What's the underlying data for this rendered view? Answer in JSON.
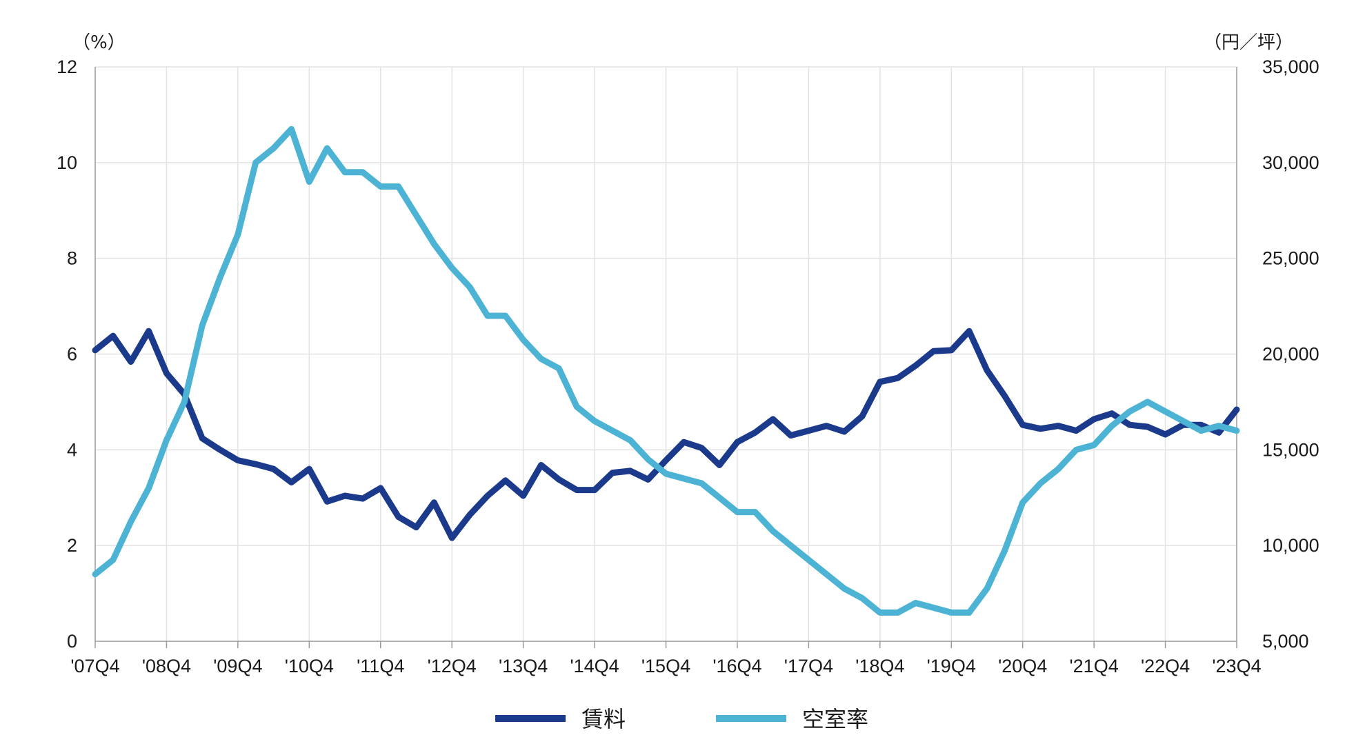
{
  "chart_data": {
    "type": "line",
    "title": "",
    "left_axis": {
      "unit_label": "（%）",
      "ylim": [
        0,
        12
      ],
      "ticks": [
        0,
        2,
        4,
        6,
        8,
        10,
        12
      ],
      "tick_labels": [
        "0",
        "2",
        "4",
        "6",
        "8",
        "10",
        "12"
      ]
    },
    "right_axis": {
      "unit_label": "（円／坪）",
      "ylim": [
        5000,
        35000
      ],
      "ticks": [
        5000,
        10000,
        15000,
        20000,
        25000,
        30000,
        35000
      ],
      "tick_labels": [
        "5,000",
        "10,000",
        "15,000",
        "20,000",
        "25,000",
        "30,000",
        "35,000"
      ]
    },
    "x_tick_labels": [
      "'07Q4",
      "'08Q4",
      "'09Q4",
      "'10Q4",
      "'11Q4",
      "'12Q4",
      "'13Q4",
      "'14Q4",
      "'15Q4",
      "'16Q4",
      "'17Q4",
      "'18Q4",
      "'19Q4",
      "'20Q4",
      "'21Q4",
      "'22Q4",
      "'23Q4"
    ],
    "quarters_count": 65,
    "grid": true,
    "legend_position": "bottom-center",
    "series": [
      {
        "name": "賃料",
        "axis": "right",
        "color": "#1b3a8c",
        "values": [
          20200,
          20950,
          19600,
          21200,
          19000,
          17900,
          15600,
          15000,
          14450,
          14250,
          14000,
          13300,
          14000,
          12300,
          12600,
          12450,
          13000,
          11500,
          10950,
          12250,
          10400,
          11600,
          12600,
          13400,
          12600,
          14200,
          13450,
          12900,
          12900,
          13800,
          13900,
          13450,
          14450,
          15400,
          15100,
          14200,
          15400,
          15900,
          16600,
          15750,
          16000,
          16250,
          15950,
          16750,
          18550,
          18750,
          19400,
          20150,
          20200,
          21200,
          19150,
          17800,
          16300,
          16100,
          16250,
          16000,
          16600,
          16900,
          16300,
          16200,
          15800,
          16300,
          16300,
          15900,
          17100
        ]
      },
      {
        "name": "空室率",
        "axis": "left",
        "color": "#4cb3d4",
        "values": [
          1.4,
          1.7,
          2.5,
          3.2,
          4.2,
          5.0,
          6.6,
          7.6,
          8.5,
          10.0,
          10.3,
          10.7,
          9.6,
          10.3,
          9.8,
          9.8,
          9.5,
          9.5,
          8.9,
          8.3,
          7.8,
          7.4,
          6.8,
          6.8,
          6.3,
          5.9,
          5.7,
          4.9,
          4.6,
          4.4,
          4.2,
          3.8,
          3.5,
          3.4,
          3.3,
          3.0,
          2.7,
          2.7,
          2.3,
          2.0,
          1.7,
          1.4,
          1.1,
          0.9,
          0.6,
          0.6,
          0.8,
          0.7,
          0.6,
          0.6,
          1.1,
          1.9,
          2.9,
          3.3,
          3.6,
          4.0,
          4.1,
          4.5,
          4.8,
          5.0,
          4.8,
          4.6,
          4.4,
          4.5,
          4.4
        ]
      }
    ]
  }
}
